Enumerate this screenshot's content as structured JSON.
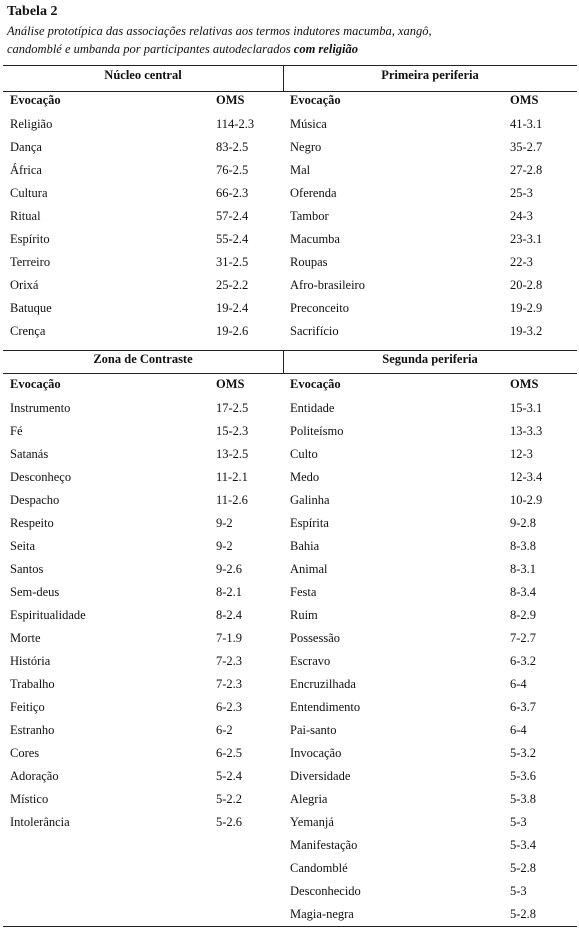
{
  "title": "Tabela 2",
  "caption": {
    "line1": "Análise prototípica das associações relativas aos termos indutores macumba, xangô,",
    "line2": "candomblé e umbanda por participantes autodeclarados",
    "emphasis": "com religião"
  },
  "quadrants": [
    {
      "title": "Núcleo central",
      "columns": [
        "Evocação",
        "OMS"
      ],
      "rows": [
        [
          "Religião",
          "114-2.3"
        ],
        [
          "Dança",
          "83-2.5"
        ],
        [
          "África",
          "76-2.5"
        ],
        [
          "Cultura",
          "66-2.3"
        ],
        [
          "Ritual",
          "57-2.4"
        ],
        [
          "Espírito",
          "55-2.4"
        ],
        [
          "Terreiro",
          "31-2.5"
        ],
        [
          "Orixá",
          "25-2.2"
        ],
        [
          "Batuque",
          "19-2.4"
        ],
        [
          "Crença",
          "19-2.6"
        ]
      ]
    },
    {
      "title": "Primeira periferia",
      "columns": [
        "Evocação",
        "OMS"
      ],
      "rows": [
        [
          "Música",
          "41-3.1"
        ],
        [
          "Negro",
          "35-2.7"
        ],
        [
          "Mal",
          "27-2.8"
        ],
        [
          "Oferenda",
          "25-3"
        ],
        [
          "Tambor",
          "24-3"
        ],
        [
          "Macumba",
          "23-3.1"
        ],
        [
          "Roupas",
          "22-3"
        ],
        [
          "Afro-brasileiro",
          "20-2.8"
        ],
        [
          "Preconceito",
          "19-2.9"
        ],
        [
          "Sacrifício",
          "19-3.2"
        ]
      ]
    },
    {
      "title": "Zona de Contraste",
      "columns": [
        "Evocação",
        "OMS"
      ],
      "rows": [
        [
          "Instrumento",
          "17-2.5"
        ],
        [
          "Fé",
          "15-2.3"
        ],
        [
          "Satanás",
          "13-2.5"
        ],
        [
          "Desconheço",
          "11-2.1"
        ],
        [
          "Despacho",
          "11-2.6"
        ],
        [
          "Respeito",
          "9-2"
        ],
        [
          "Seita",
          "9-2"
        ],
        [
          "Santos",
          "9-2.6"
        ],
        [
          "Sem-deus",
          "8-2.1"
        ],
        [
          "Espiritualidade",
          "8-2.4"
        ],
        [
          "Morte",
          "7-1.9"
        ],
        [
          "História",
          "7-2.3"
        ],
        [
          "Trabalho",
          "7-2.3"
        ],
        [
          "Feitiço",
          "6-2.3"
        ],
        [
          "Estranho",
          "6-2"
        ],
        [
          "Cores",
          "6-2.5"
        ],
        [
          "Adoração",
          "5-2.4"
        ],
        [
          "Místico",
          "5-2.2"
        ],
        [
          "Intolerância",
          "5-2.6"
        ]
      ]
    },
    {
      "title": "Segunda periferia",
      "columns": [
        "Evocação",
        "OMS"
      ],
      "rows": [
        [
          "Entidade",
          "15-3.1"
        ],
        [
          "Politeísmo",
          "13-3.3"
        ],
        [
          "Culto",
          "12-3"
        ],
        [
          "Medo",
          "12-3.4"
        ],
        [
          "Galinha",
          "10-2.9"
        ],
        [
          "Espírita",
          "9-2.8"
        ],
        [
          "Bahia",
          "8-3.8"
        ],
        [
          "Animal",
          "8-3.1"
        ],
        [
          "Festa",
          "8-3.4"
        ],
        [
          "Ruim",
          "8-2.9"
        ],
        [
          "Possessão",
          "7-2.7"
        ],
        [
          "Escravo",
          "6-3.2"
        ],
        [
          "Encruzilhada",
          "6-4"
        ],
        [
          "Entendimento",
          "6-3.7"
        ],
        [
          "Pai-santo",
          "6-4"
        ],
        [
          "Invocação",
          "5-3.2"
        ],
        [
          "Diversidade",
          "5-3.6"
        ],
        [
          "Alegria",
          "5-3.8"
        ],
        [
          "Yemanjá",
          "5-3"
        ],
        [
          "Manifestação",
          "5-3.4"
        ],
        [
          "Candomblé",
          "5-2.8"
        ],
        [
          "Desconhecido",
          "5-3"
        ],
        [
          "Magia-negra",
          "5-2.8"
        ]
      ]
    }
  ]
}
